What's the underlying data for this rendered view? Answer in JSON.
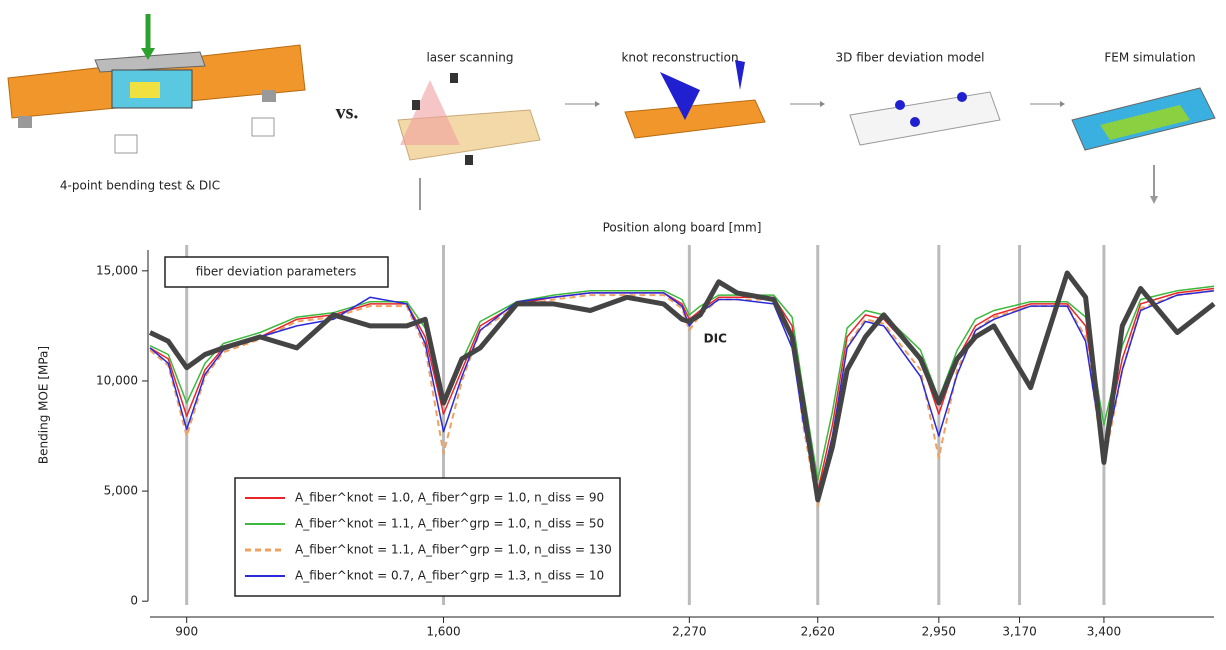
{
  "illustration": {
    "left_caption": "4-point bending test & DIC",
    "vs": "vs.",
    "steps": [
      "laser scanning",
      "knot reconstruction",
      "3D fiber deviation model",
      "FEM simulation"
    ]
  },
  "chart_data": {
    "type": "line",
    "xlabel": "Position along board [mm]",
    "ylabel": "Bending MOE [MPa]",
    "annotation": "fiber deviation parameters",
    "x": [
      800,
      850,
      900,
      950,
      1000,
      1100,
      1200,
      1300,
      1400,
      1500,
      1550,
      1600,
      1650,
      1700,
      1800,
      1900,
      2000,
      2100,
      2200,
      2250,
      2270,
      2300,
      2350,
      2400,
      2500,
      2550,
      2580,
      2620,
      2660,
      2700,
      2750,
      2800,
      2900,
      2950,
      3000,
      3050,
      3100,
      3200,
      3300,
      3350,
      3400,
      3450,
      3500,
      3600,
      3700
    ],
    "series": [
      {
        "name": "A_fiber^knot = 1.0, A_fiber^grp = 1.0, n_diss = 90",
        "color": "#e8262a",
        "linestyle": "solid",
        "linewidth": 1.5,
        "values": [
          11500,
          11000,
          8400,
          10500,
          11500,
          12000,
          12800,
          13000,
          13500,
          13500,
          12000,
          8500,
          10500,
          12500,
          13500,
          13800,
          14000,
          14000,
          14000,
          13500,
          12800,
          13200,
          13800,
          13800,
          13800,
          12500,
          9000,
          5000,
          8000,
          12000,
          13000,
          12800,
          11000,
          8500,
          11000,
          12500,
          13000,
          13500,
          13500,
          12500,
          7000,
          11000,
          13500,
          14000,
          14200
        ]
      },
      {
        "name": "A_fiber^knot = 1.1, A_fiber^grp = 1.0, n_diss = 50",
        "color": "#3cb83c",
        "linestyle": "solid",
        "linewidth": 1.5,
        "values": [
          11600,
          11200,
          9000,
          10800,
          11700,
          12200,
          12900,
          13100,
          13600,
          13600,
          12400,
          9000,
          10900,
          12700,
          13600,
          13900,
          14100,
          14100,
          14100,
          13700,
          13000,
          13400,
          13900,
          13900,
          13900,
          12900,
          9600,
          5500,
          8600,
          12400,
          13200,
          13000,
          11400,
          9200,
          11400,
          12800,
          13200,
          13600,
          13600,
          12900,
          8000,
          11600,
          13700,
          14100,
          14300
        ]
      },
      {
        "name": "A_fiber^knot = 1.1, A_fiber^grp = 1.0, n_diss = 130",
        "color": "#f0a060",
        "linestyle": "dashed",
        "linewidth": 2,
        "values": [
          11400,
          10700,
          7500,
          10200,
          11300,
          11900,
          12700,
          12900,
          13400,
          13400,
          11500,
          6700,
          10000,
          12300,
          13400,
          13700,
          13900,
          13900,
          13900,
          13300,
          12300,
          13000,
          13700,
          13700,
          13700,
          12000,
          8000,
          4300,
          7200,
          11600,
          12800,
          12600,
          10500,
          6500,
          10500,
          12300,
          12900,
          13400,
          13400,
          12000,
          6200,
          10500,
          13300,
          13900,
          14100
        ]
      },
      {
        "name": "A_fiber^knot = 0.7, A_fiber^grp = 1.3, n_diss = 10",
        "color": "#2a2ad8",
        "linestyle": "solid",
        "linewidth": 1.5,
        "values": [
          11500,
          10800,
          7800,
          10300,
          11400,
          12000,
          12500,
          12800,
          13800,
          13500,
          11700,
          7700,
          10200,
          12300,
          13600,
          13800,
          14000,
          14000,
          14000,
          13400,
          12500,
          13100,
          13700,
          13700,
          13500,
          11500,
          8200,
          4700,
          7500,
          11500,
          12700,
          12500,
          10200,
          7500,
          10300,
          12300,
          12800,
          13400,
          13400,
          11800,
          6500,
          10500,
          13200,
          13900,
          14100
        ]
      },
      {
        "name": "DIC",
        "color": "#444444",
        "linestyle": "solid",
        "linewidth": 5,
        "label_position": "inline",
        "values": [
          12200,
          11800,
          10600,
          11200,
          11500,
          12000,
          11500,
          13000,
          12500,
          12500,
          12800,
          9000,
          11000,
          11500,
          13500,
          13500,
          13200,
          13800,
          13500,
          12800,
          12700,
          13000,
          14500,
          14000,
          13700,
          12000,
          9000,
          4600,
          7000,
          10500,
          12000,
          13000,
          11000,
          9000,
          11000,
          12000,
          12500,
          9700,
          14900,
          13800,
          6300,
          12500,
          14200,
          12200,
          13500
        ]
      }
    ],
    "xlim": [
      800,
      3700
    ],
    "ylim": [
      -400,
      16400
    ],
    "xticks": [
      900,
      {
        "value": 1600,
        "label": "1,600"
      },
      {
        "value": 2270,
        "label": "2,270"
      },
      {
        "value": 2620,
        "label": "2,620"
      },
      {
        "value": 2950,
        "label": "2,950"
      },
      {
        "value": 3170,
        "label": "3,170"
      },
      {
        "value": 3400,
        "label": "3,400"
      }
    ],
    "yticks": [
      0,
      {
        "value": 5000,
        "label": "5,000"
      },
      {
        "value": 10000,
        "label": "10,000"
      },
      {
        "value": 15000,
        "label": "15,000"
      }
    ],
    "xgrid": true,
    "legend": "lower left"
  }
}
